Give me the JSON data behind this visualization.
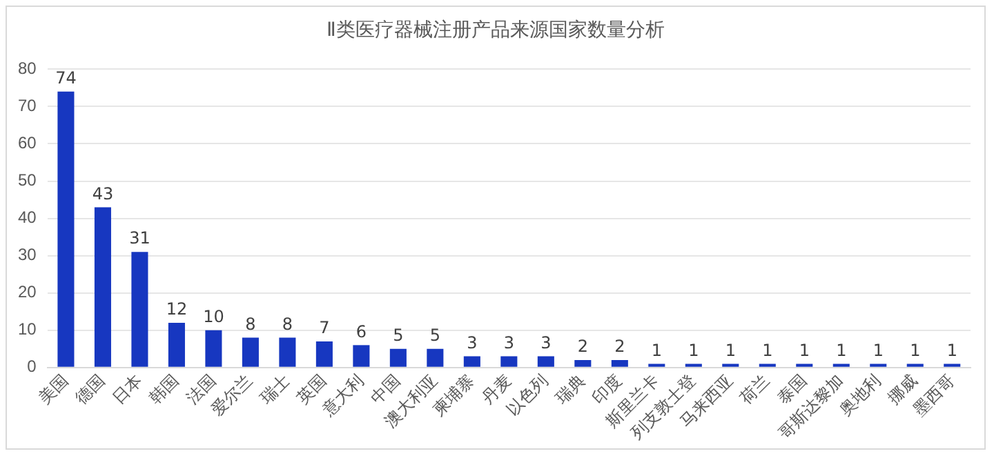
{
  "chart_data": {
    "type": "bar",
    "title": "Ⅱ类医疗器械注册产品来源国家数量分析",
    "categories": [
      "美国",
      "德国",
      "日本",
      "韩国",
      "法国",
      "爱尔兰",
      "瑞士",
      "英国",
      "意大利",
      "中国",
      "澳大利亚",
      "柬埔寨",
      "丹麦",
      "以色列",
      "瑞典",
      "印度",
      "斯里兰卡",
      "列支敦士登",
      "马来西亚",
      "荷兰",
      "泰国",
      "哥斯达黎加",
      "奥地利",
      "挪威",
      "墨西哥"
    ],
    "values": [
      74,
      43,
      31,
      12,
      10,
      8,
      8,
      7,
      6,
      5,
      5,
      3,
      3,
      3,
      2,
      2,
      1,
      1,
      1,
      1,
      1,
      1,
      1,
      1,
      1
    ],
    "color": "#1737c0",
    "ylim": [
      0,
      80
    ],
    "yticks": [
      0,
      10,
      20,
      30,
      40,
      50,
      60,
      70,
      80
    ],
    "grid": "y",
    "data_labels": true
  }
}
